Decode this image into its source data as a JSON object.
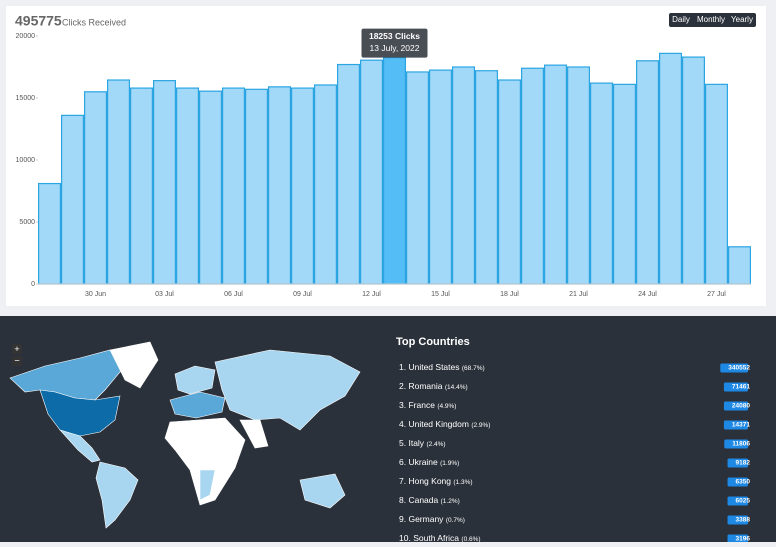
{
  "header": {
    "total": "495775",
    "subtitle": "Clicks Received",
    "buttons": [
      "Daily",
      "Monthly",
      "Yearly"
    ]
  },
  "chart_data": {
    "type": "bar",
    "categories": [
      null,
      null,
      "30 Jun",
      null,
      null,
      "03 Jul",
      null,
      null,
      "06 Jul",
      null,
      null,
      "09 Jul",
      null,
      null,
      "12 Jul",
      null,
      null,
      "15 Jul",
      null,
      null,
      "18 Jul",
      null,
      null,
      "21 Jul",
      null,
      null,
      "24 Jul",
      null,
      null,
      "27 Jul",
      null
    ],
    "values": [
      8100,
      13600,
      15500,
      16450,
      15800,
      16400,
      15800,
      15550,
      15800,
      15700,
      15900,
      15800,
      16050,
      17700,
      18050,
      18253,
      17100,
      17250,
      17500,
      17200,
      16450,
      17400,
      17650,
      17500,
      16200,
      16100,
      18000,
      18600,
      18300,
      16100,
      3000
    ],
    "color": "#a3d9f8",
    "highlight_color": "#55bdf6",
    "ylim": [
      0,
      20000
    ],
    "yticks": [
      0,
      5000,
      10000,
      15000,
      20000
    ],
    "grid": false,
    "tooltip": {
      "index": 15,
      "label": "18253 Clicks",
      "date": "13 July, 2022"
    }
  },
  "map": {
    "zoom_in": "+",
    "zoom_out": "−"
  },
  "top_countries": {
    "title": "Top Countries",
    "rows": [
      {
        "rank": "1.",
        "name": "United States",
        "share": "(68.7%)",
        "count": 340552
      },
      {
        "rank": "2.",
        "name": "Romania",
        "share": "(14.4%)",
        "count": 71461
      },
      {
        "rank": "3.",
        "name": "France",
        "share": "(4.9%)",
        "count": 24080
      },
      {
        "rank": "4.",
        "name": "United Kingdom",
        "share": "(2.9%)",
        "count": 14371
      },
      {
        "rank": "5.",
        "name": "Italy",
        "share": "(2.4%)",
        "count": 11806
      },
      {
        "rank": "6.",
        "name": "Ukraine",
        "share": "(1.9%)",
        "count": 9182
      },
      {
        "rank": "7.",
        "name": "Hong Kong",
        "share": "(1.3%)",
        "count": 6350
      },
      {
        "rank": "8.",
        "name": "Canada",
        "share": "(1.2%)",
        "count": 6025
      },
      {
        "rank": "9.",
        "name": "Germany",
        "share": "(0.7%)",
        "count": 3388
      },
      {
        "rank": "10.",
        "name": "South Africa",
        "share": "(0.6%)",
        "count": 3196
      }
    ]
  }
}
